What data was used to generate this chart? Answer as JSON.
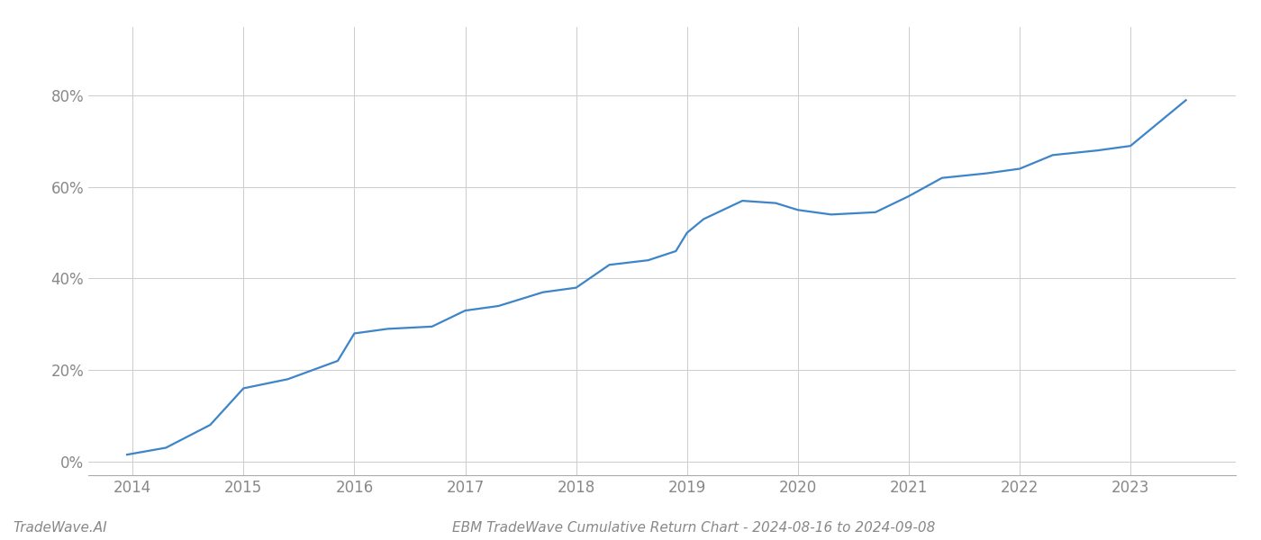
{
  "title": "EBM TradeWave Cumulative Return Chart - 2024-08-16 to 2024-09-08",
  "watermark": "TradeWave.AI",
  "line_color": "#3d85c8",
  "background_color": "#ffffff",
  "grid_color": "#cccccc",
  "x_values": [
    2013.95,
    2014.3,
    2014.7,
    2015.0,
    2015.4,
    2015.85,
    2016.0,
    2016.3,
    2016.7,
    2017.0,
    2017.3,
    2017.7,
    2018.0,
    2018.3,
    2018.65,
    2018.9,
    2019.0,
    2019.15,
    2019.5,
    2019.8,
    2020.0,
    2020.3,
    2020.7,
    2021.0,
    2021.3,
    2021.7,
    2022.0,
    2022.3,
    2022.7,
    2023.0,
    2023.5
  ],
  "y_values": [
    1.5,
    3,
    8,
    16,
    18,
    22,
    28,
    29,
    29.5,
    33,
    34,
    37,
    38,
    43,
    44,
    46,
    50,
    53,
    57,
    56.5,
    55,
    54,
    54.5,
    58,
    62,
    63,
    64,
    67,
    68,
    69,
    79
  ],
  "xlim": [
    2013.6,
    2023.95
  ],
  "ylim": [
    -3,
    95
  ],
  "yticks": [
    0,
    20,
    40,
    60,
    80
  ],
  "xticks": [
    2014,
    2015,
    2016,
    2017,
    2018,
    2019,
    2020,
    2021,
    2022,
    2023
  ],
  "title_fontsize": 11,
  "tick_fontsize": 12,
  "watermark_fontsize": 11,
  "line_width": 1.6
}
